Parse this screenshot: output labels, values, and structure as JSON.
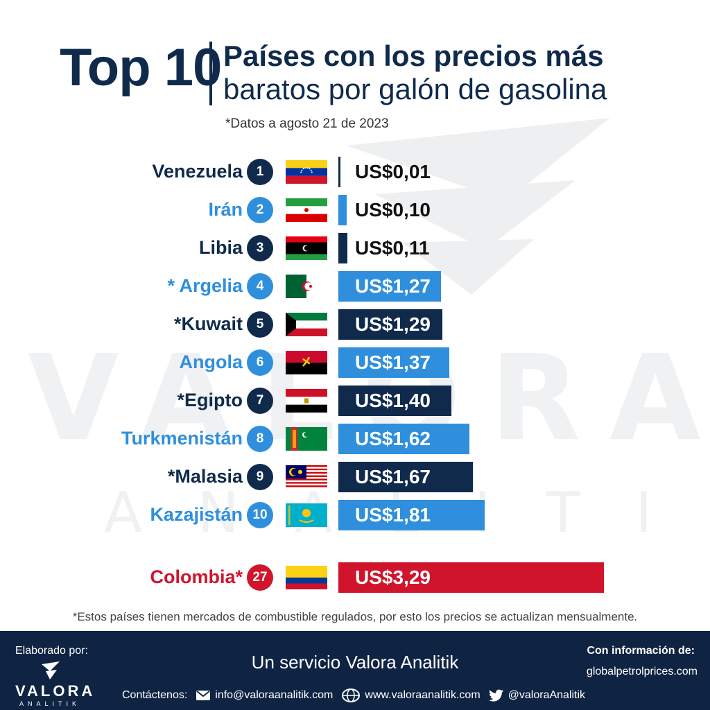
{
  "header": {
    "top_label": "Top 10",
    "title_line1": "Países con los precios más",
    "title_line2": "baratos por galón de gasolina",
    "subtitle": "*Datos a agosto 21 de 2023"
  },
  "watermark": {
    "big": "VALORA",
    "small": "ANALITIK"
  },
  "chart_data": {
    "type": "bar",
    "orientation": "horizontal",
    "unit": "US$ por galón",
    "categories": [
      "Venezuela",
      "Irán",
      "Libia",
      "* Argelia",
      "*Kuwait",
      "Angola",
      "*Egipto",
      "Turkmenistán",
      "*Malasia",
      "Kazajistán",
      "Colombia*"
    ],
    "ranks": [
      "1",
      "2",
      "3",
      "4",
      "5",
      "6",
      "7",
      "8",
      "9",
      "10",
      "27"
    ],
    "values": [
      0.01,
      0.1,
      0.11,
      1.27,
      1.29,
      1.37,
      1.4,
      1.62,
      1.67,
      1.81,
      3.29
    ],
    "value_labels": [
      "US$0,01",
      "US$0,10",
      "US$0,11",
      "US$1,27",
      "US$1,29",
      "US$1,37",
      "US$1,40",
      "US$1,62",
      "US$1,67",
      "US$1,81",
      "US$3,29"
    ],
    "flags": [
      "venezuela-flag",
      "iran-flag",
      "libya-flag",
      "algeria-flag",
      "kuwait-flag",
      "angola-flag",
      "egypt-flag",
      "turkmenistan-flag",
      "malaysia-flag",
      "kazakhstan-flag",
      "colombia-flag"
    ],
    "row_colors": [
      "#102a4c",
      "#2f8fdc",
      "#102a4c",
      "#2f8fdc",
      "#102a4c",
      "#2f8fdc",
      "#102a4c",
      "#2f8fdc",
      "#102a4c",
      "#2f8fdc",
      "#d0142c"
    ],
    "highlight": "Colombia*",
    "xlim": [
      0,
      3.29
    ],
    "grid": false,
    "legend": "none"
  },
  "colors": {
    "navy": "#102a4c",
    "light_blue": "#2f8fdc",
    "red": "#d0142c",
    "footer": "#0f2443"
  },
  "footnote": "*Estos países tienen mercados de combustible regulados, por esto los precios se actualizan mensualmente.",
  "footer": {
    "made_by": "Elaborado por:",
    "logo_main": "VALORA",
    "logo_sub": "ANALITIK",
    "service": "Un servicio Valora Analitik",
    "info_label": "Con información de:",
    "info_source": "globalpetrolprices.com",
    "contact_label": "Contáctenos:",
    "email": "info@valoraanalitik.com",
    "website": "www.valoraanalitik.com",
    "twitter": "@valoraAnalitik",
    "icons": [
      "mail-icon",
      "globe-icon",
      "twitter-icon"
    ]
  }
}
